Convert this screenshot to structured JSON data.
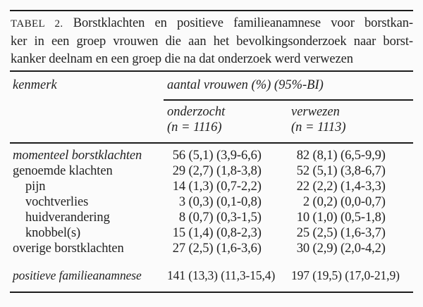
{
  "caption": {
    "label": "TABEL 2.",
    "line1_rest": "Borstklachten en positieve familieanamnese voor borstkan-",
    "line2": "ker in een groep vrouwen die aan het bevolkingsonderzoek naar borst-",
    "line3": "kanker deelnam en een groep die na dat onderzoek werd verwezen"
  },
  "header": {
    "kenmerk": "kenmerk",
    "group_label": "aantal vrouwen (%) (95%-BI)",
    "col1": {
      "name": "onderzocht",
      "n": "(n = 1116)"
    },
    "col2": {
      "name": "verwezen",
      "n": "(n = 1113)"
    }
  },
  "rows": [
    {
      "label": "momenteel borstklachten",
      "onderzocht_n": "56",
      "onderzocht_rest": "(5,1) (3,9-6,6)",
      "verwezen_n": "82",
      "verwezen_rest": "(8,1) (6,5-9,9)"
    },
    {
      "label": "genoemde klachten",
      "onderzocht_n": "29",
      "onderzocht_rest": "(2,7) (1,8-3,8)",
      "verwezen_n": "52",
      "verwezen_rest": "(5,1) (3,8-6,7)"
    },
    {
      "label": "pijn",
      "onderzocht_n": "14",
      "onderzocht_rest": "(1,3) (0,7-2,2)",
      "verwezen_n": "22",
      "verwezen_rest": "(2,2) (1,4-3,3)"
    },
    {
      "label": "vochtverlies",
      "onderzocht_n": "3",
      "onderzocht_rest": "(0,3) (0,1-0,8)",
      "verwezen_n": "2",
      "verwezen_rest": "(0,2) (0,0-0,7)"
    },
    {
      "label": "huidverandering",
      "onderzocht_n": "8",
      "onderzocht_rest": "(0,7) (0,3-1,5)",
      "verwezen_n": "10",
      "verwezen_rest": "(1,0) (0,5-1,8)"
    },
    {
      "label": "knobbel(s)",
      "onderzocht_n": "15",
      "onderzocht_rest": "(1,4) (0,8-2,3)",
      "verwezen_n": "25",
      "verwezen_rest": "(2,5) (1,6-3,7)"
    },
    {
      "label": "overige borstklachten",
      "onderzocht_n": "27",
      "onderzocht_rest": "(2,5) (1,6-3,6)",
      "verwezen_n": "30",
      "verwezen_rest": "(2,9) (2,0-4,2)"
    },
    {
      "label": "positieve familieanamnese",
      "onderzocht_n": "141",
      "onderzocht_rest": "(13,3) (11,3-15,4)",
      "verwezen_n": "197",
      "verwezen_rest": "(19,5) (17,0-21,9)"
    }
  ],
  "colors": {
    "text": "#222222",
    "rule": "#1c1c1c",
    "background": "#fbfbfb"
  }
}
